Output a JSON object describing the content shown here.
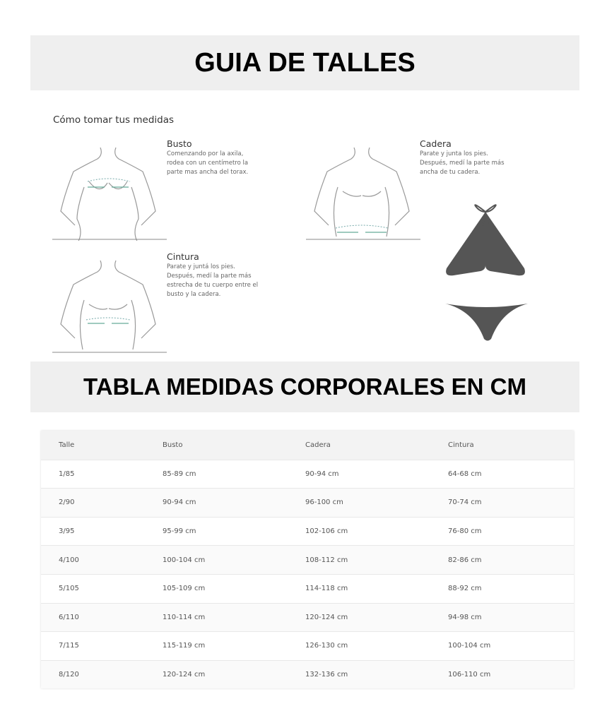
{
  "title": "GUIA DE TALLES",
  "how_to": "Cómo tomar tus medidas",
  "busto": {
    "title": "Busto",
    "text": [
      "Comenzando por la axila,",
      "rodea con un centímetro la",
      "parte mas ancha del torax."
    ]
  },
  "cadera": {
    "title": "Cadera",
    "text": [
      "Parate y junta los pies.",
      "Después, medí la parte más",
      "ancha de tu cadera."
    ]
  },
  "cintura": {
    "title": "Cintura",
    "text": [
      "Parate y juntá los pies.",
      "Después, medí la parte más",
      "estrecha de tu cuerpo entre el",
      "busto y la cadera."
    ]
  },
  "table_title": "TABLA MEDIDAS CORPORALES EN CM",
  "table": {
    "headers": [
      "Talle",
      "Busto",
      "Cadera",
      "Cintura"
    ],
    "rows": [
      [
        "1/85",
        "85-89 cm",
        "90-94 cm",
        "64-68 cm"
      ],
      [
        "2/90",
        "90-94 cm",
        "96-100 cm",
        "70-74 cm"
      ],
      [
        "3/95",
        "95-99 cm",
        "102-106 cm",
        "76-80 cm"
      ],
      [
        "4/100",
        "100-104 cm",
        "108-112 cm",
        "82-86 cm"
      ],
      [
        "5/105",
        "105-109 cm",
        "114-118 cm",
        "88-92 cm"
      ],
      [
        "6/110",
        "110-114 cm",
        "120-124 cm",
        "94-98 cm"
      ],
      [
        "7/115",
        "115-119 cm",
        "126-130 cm",
        "100-104 cm"
      ],
      [
        "8/120",
        "120-124 cm",
        "132-136 cm",
        "106-110 cm"
      ]
    ]
  }
}
